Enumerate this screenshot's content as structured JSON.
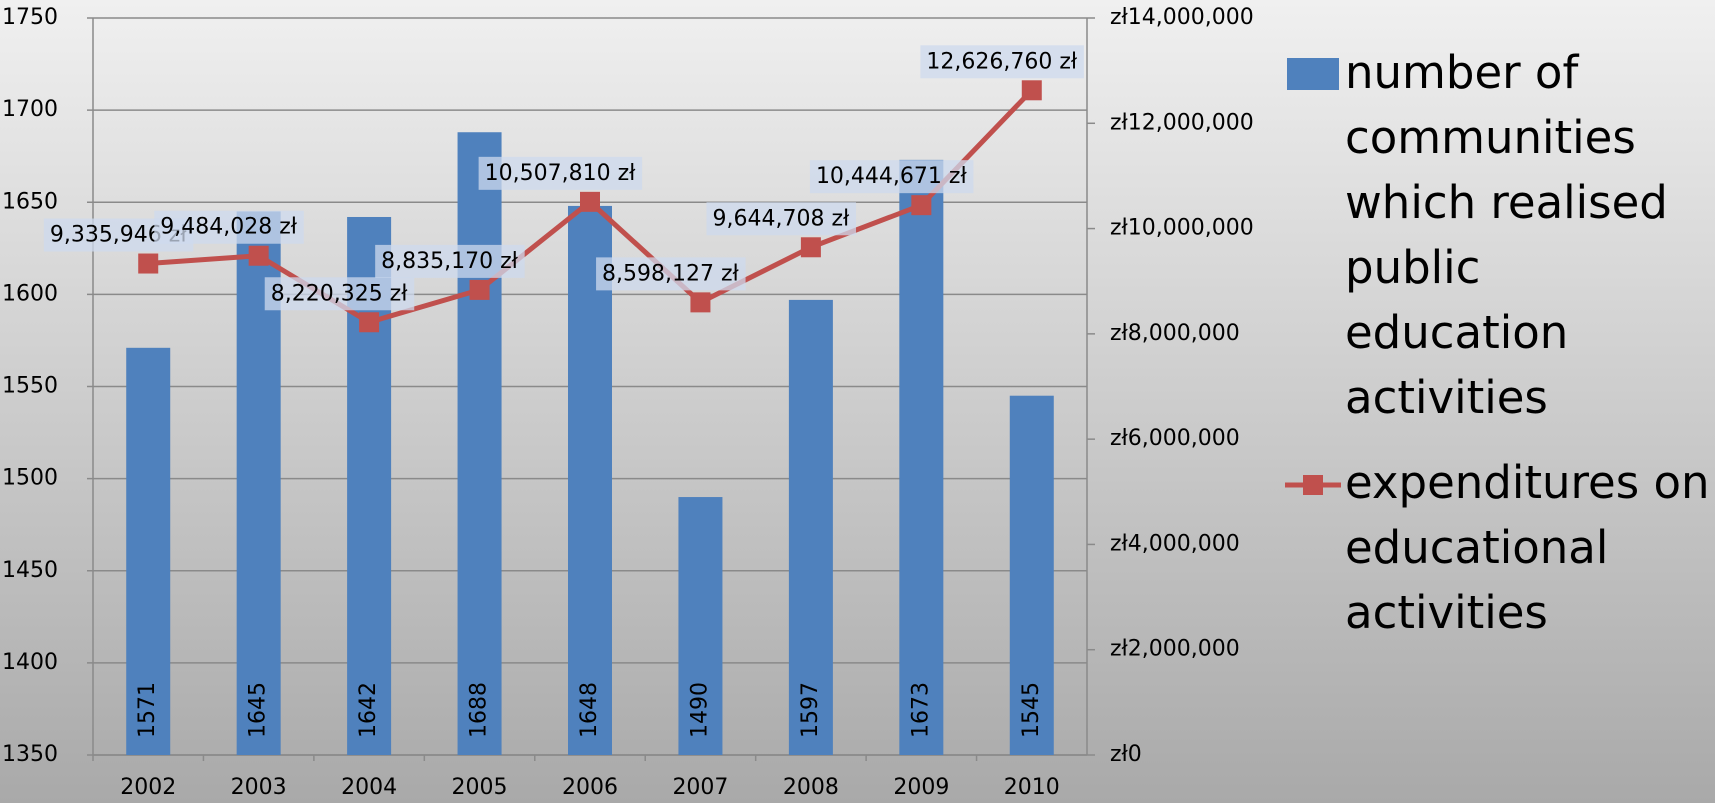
{
  "chart_data": {
    "type": "bar-line",
    "categories": [
      "2002",
      "2003",
      "2004",
      "2005",
      "2006",
      "2007",
      "2008",
      "2009",
      "2010"
    ],
    "series": [
      {
        "name": "number of communities which realised public education activities",
        "color": "#4f81bd",
        "type": "bar",
        "values": [
          1571,
          1645,
          1642,
          1688,
          1648,
          1490,
          1597,
          1673,
          1545
        ]
      },
      {
        "name": "expenditures on educational activities",
        "color": "#c0504d",
        "type": "line",
        "axis": "y2",
        "values": [
          9335946,
          9484028,
          8220325,
          8835170,
          10507810,
          8598127,
          9644708,
          10444671,
          12626760
        ],
        "value_labels": [
          "9,335,946 zł",
          "9,484,028 zł",
          "8,220,325 zł",
          "8,835,170 zł",
          "10,507,810 zł",
          "8,598,127 zł",
          "9,644,708 zł",
          "10,444,671 zł",
          "12,626,760 zł"
        ]
      }
    ],
    "ylim": [
      1350,
      1750
    ],
    "yticks": [
      1350,
      1400,
      1450,
      1500,
      1550,
      1600,
      1650,
      1700,
      1750
    ],
    "y2lim": [
      0,
      14000000
    ],
    "y2ticks": [
      {
        "value": 0,
        "label": "zł0"
      },
      {
        "value": 2000000,
        "label": "zł2,000,000"
      },
      {
        "value": 4000000,
        "label": "zł4,000,000"
      },
      {
        "value": 6000000,
        "label": "zł6,000,000"
      },
      {
        "value": 8000000,
        "label": "zł8,000,000"
      },
      {
        "value": 10000000,
        "label": "zł10,000,000"
      },
      {
        "value": 12000000,
        "label": "zł12,000,000"
      },
      {
        "value": 14000000,
        "label": "zł14,000,000"
      }
    ],
    "grid": true,
    "legend": "right"
  }
}
